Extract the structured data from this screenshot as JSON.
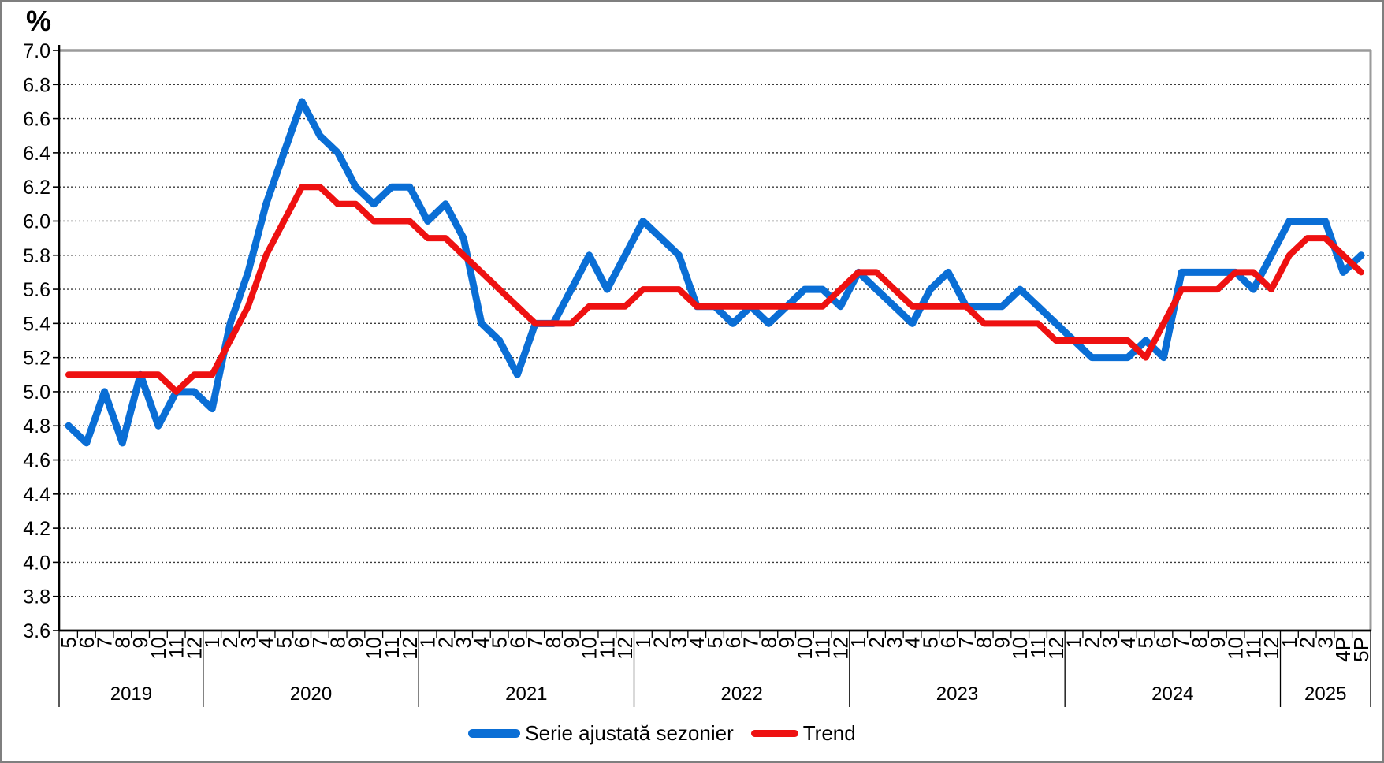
{
  "chart_data": {
    "type": "line",
    "title": "",
    "ylabel": "%",
    "xlabel": "",
    "ylim": [
      3.6,
      7.0
    ],
    "ytick_step": 0.2,
    "ytick_labels": [
      "7.0",
      "6.8",
      "6.6",
      "6.4",
      "6.2",
      "6.0",
      "5.8",
      "5.6",
      "5.4",
      "5.2",
      "5.0",
      "4.8",
      "4.6",
      "4.4",
      "4.2",
      "4.0",
      "3.8",
      "3.6"
    ],
    "grid": "horizontal dotted lines at each 0.2 step",
    "legend_position": "bottom-center",
    "x_labels": [
      "5",
      "6",
      "7",
      "8",
      "9",
      "10",
      "11",
      "12",
      "1",
      "2",
      "3",
      "4",
      "5",
      "6",
      "7",
      "8",
      "9",
      "10",
      "11",
      "12",
      "1",
      "2",
      "3",
      "4",
      "5",
      "6",
      "7",
      "8",
      "9",
      "10",
      "11",
      "12",
      "1",
      "2",
      "3",
      "4",
      "5",
      "6",
      "7",
      "8",
      "9",
      "10",
      "11",
      "12",
      "1",
      "2",
      "3",
      "4",
      "5",
      "6",
      "7",
      "8",
      "9",
      "10",
      "11",
      "12",
      "1",
      "2",
      "3",
      "4",
      "5",
      "6",
      "7",
      "8",
      "9",
      "10",
      "11",
      "12",
      "1",
      "2",
      "3",
      "4P",
      "5P"
    ],
    "year_groups": [
      {
        "label": "2019",
        "count": 8
      },
      {
        "label": "2020",
        "count": 12
      },
      {
        "label": "2021",
        "count": 12
      },
      {
        "label": "2022",
        "count": 12
      },
      {
        "label": "2023",
        "count": 12
      },
      {
        "label": "2024",
        "count": 12
      },
      {
        "label": "2025",
        "count": 5
      }
    ],
    "series": [
      {
        "name": "Serie ajustată sezonier",
        "color": "#0a6ed5",
        "stroke_width": 9,
        "values": [
          4.8,
          4.7,
          5.0,
          4.7,
          5.1,
          4.8,
          5.0,
          5.0,
          4.9,
          5.4,
          5.7,
          6.1,
          6.4,
          6.7,
          6.5,
          6.4,
          6.2,
          6.1,
          6.2,
          6.2,
          6.0,
          6.1,
          5.9,
          5.4,
          5.3,
          5.1,
          5.4,
          5.4,
          5.6,
          5.8,
          5.6,
          5.8,
          6.0,
          5.9,
          5.8,
          5.5,
          5.5,
          5.4,
          5.5,
          5.4,
          5.5,
          5.6,
          5.6,
          5.5,
          5.7,
          5.6,
          5.5,
          5.4,
          5.6,
          5.7,
          5.5,
          5.5,
          5.5,
          5.6,
          5.5,
          5.4,
          5.3,
          5.2,
          5.2,
          5.2,
          5.3,
          5.2,
          5.7,
          5.7,
          5.7,
          5.7,
          5.6,
          5.8,
          6.0,
          6.0,
          6.0,
          5.7,
          5.8
        ]
      },
      {
        "name": "Trend",
        "color": "#ee1111",
        "stroke_width": 8,
        "values": [
          5.1,
          5.1,
          5.1,
          5.1,
          5.1,
          5.1,
          5.0,
          5.1,
          5.1,
          5.3,
          5.5,
          5.8,
          6.0,
          6.2,
          6.2,
          6.1,
          6.1,
          6.0,
          6.0,
          6.0,
          5.9,
          5.9,
          5.8,
          5.7,
          5.6,
          5.5,
          5.4,
          5.4,
          5.4,
          5.5,
          5.5,
          5.5,
          5.6,
          5.6,
          5.6,
          5.5,
          5.5,
          5.5,
          5.5,
          5.5,
          5.5,
          5.5,
          5.5,
          5.6,
          5.7,
          5.7,
          5.6,
          5.5,
          5.5,
          5.5,
          5.5,
          5.4,
          5.4,
          5.4,
          5.4,
          5.3,
          5.3,
          5.3,
          5.3,
          5.3,
          5.2,
          5.4,
          5.6,
          5.6,
          5.6,
          5.7,
          5.7,
          5.6,
          5.8,
          5.9,
          5.9,
          5.8,
          5.7
        ]
      }
    ]
  }
}
